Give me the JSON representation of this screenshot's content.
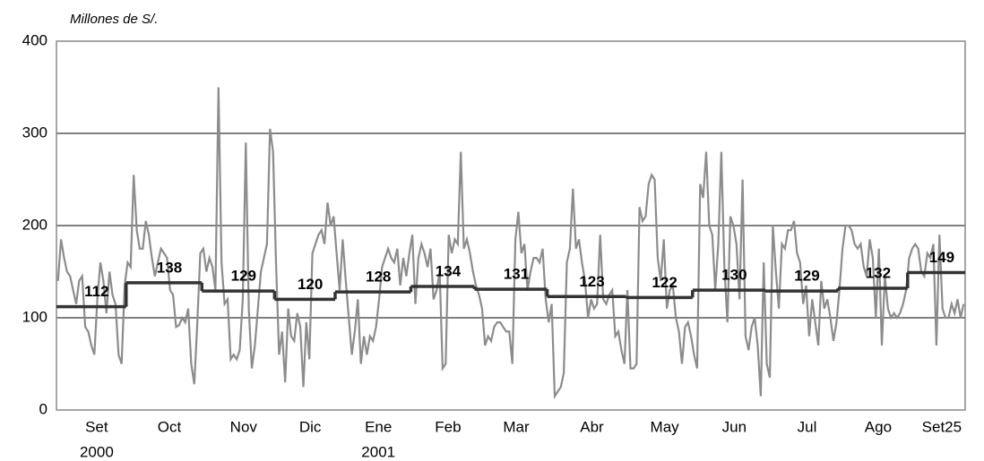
{
  "chart_data": {
    "type": "line",
    "y_label": "Millones de S/.",
    "categories": [
      "Set",
      "Oct",
      "Nov",
      "Dic",
      "Ene",
      "Feb",
      "Mar",
      "Abr",
      "May",
      "Jun",
      "Jul",
      "Ago",
      "Set25"
    ],
    "year_labels": [
      "2000",
      null,
      null,
      null,
      "2001",
      null,
      null,
      null,
      null,
      null,
      null,
      null,
      null
    ],
    "ylim": [
      0,
      400
    ],
    "yticks": [
      0,
      100,
      200,
      300,
      400
    ],
    "grid": true,
    "series": [
      {
        "color": "#8c8c8c",
        "values": [
          [
            140,
            185,
            165,
            150,
            145,
            130,
            115,
            140,
            145,
            90,
            85,
            70,
            60,
            120,
            160,
            140,
            105,
            150,
            125,
            115,
            60,
            50,
            135
          ],
          [
            160,
            155,
            255,
            195,
            175,
            175,
            205,
            190,
            165,
            145,
            160,
            175,
            170,
            165,
            130,
            125,
            90,
            92,
            100,
            95,
            110,
            50,
            28,
            95,
            170
          ],
          [
            175,
            150,
            165,
            155,
            130,
            350,
            160,
            115,
            120,
            55,
            60,
            55,
            65,
            120,
            290,
            110,
            45,
            70,
            110,
            150,
            165,
            180,
            305,
            280
          ],
          [
            160,
            60,
            85,
            30,
            110,
            80,
            75,
            105,
            90,
            25,
            95,
            55,
            170,
            180,
            190,
            195,
            180,
            225,
            200,
            210
          ],
          [
            170,
            130,
            185,
            140,
            100,
            60,
            85,
            120,
            50,
            80,
            60,
            80,
            75,
            90,
            120,
            155,
            165,
            175,
            165,
            160,
            175,
            135,
            165,
            145,
            170
          ],
          [
            190,
            115,
            165,
            180,
            170,
            155,
            175,
            120,
            130,
            150,
            45,
            50,
            190,
            170,
            185,
            180,
            280,
            175,
            185,
            170,
            150
          ],
          [
            135,
            125,
            110,
            70,
            80,
            75,
            90,
            95,
            95,
            90,
            85,
            85,
            50,
            185,
            215,
            170,
            180,
            130,
            150,
            165,
            165,
            160,
            175,
            120
          ],
          [
            95,
            115,
            15,
            20,
            25,
            40,
            160,
            175,
            240,
            175,
            185,
            160,
            140,
            100,
            120,
            110,
            115,
            190,
            120,
            115,
            125,
            130,
            80,
            85,
            65,
            50
          ],
          [
            130,
            45,
            45,
            50,
            220,
            205,
            210,
            245,
            255,
            250,
            165,
            140,
            185,
            110,
            130,
            135,
            100,
            85,
            50,
            90,
            95,
            80
          ],
          [
            60,
            45,
            245,
            230,
            280,
            200,
            190,
            130,
            180,
            280,
            155,
            95,
            210,
            200,
            180,
            120,
            250,
            80,
            65,
            90,
            100,
            70,
            15,
            160
          ],
          [
            50,
            35,
            200,
            150,
            110,
            180,
            175,
            195,
            195,
            205,
            170,
            160,
            115,
            135,
            80,
            120,
            95,
            70,
            140,
            110,
            120,
            100,
            75,
            95
          ],
          [
            130,
            175,
            200,
            200,
            195,
            180,
            175,
            180,
            155,
            145,
            185,
            165,
            100,
            175,
            70,
            145,
            110,
            100,
            105,
            100,
            105,
            115,
            130
          ],
          [
            165,
            175,
            180,
            175,
            150,
            145,
            170,
            165,
            180,
            70,
            190,
            110,
            100,
            100,
            115,
            105,
            120,
            100,
            115
          ]
        ]
      },
      {
        "color": "#333333",
        "values": [
          112,
          138,
          129,
          120,
          128,
          134,
          131,
          123,
          122,
          130,
          129,
          132,
          149
        ]
      }
    ]
  }
}
